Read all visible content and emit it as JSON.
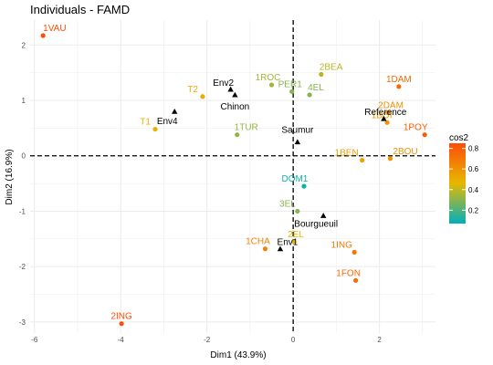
{
  "chart_data": {
    "type": "scatter",
    "title": "Individuals - FAMD",
    "xlabel": "Dim1 (43.9%)",
    "ylabel": "Dim2 (16.9%)",
    "xlim": [
      -6.1,
      3.3
    ],
    "ylim": [
      -3.2,
      2.45
    ],
    "xticks": [
      -6,
      -4,
      -2,
      0,
      2
    ],
    "yticks": [
      -3,
      -2,
      -1,
      0,
      1,
      2
    ],
    "grid": true,
    "legend": {
      "title": "cos2",
      "ticks": [
        "0.8",
        "0.6",
        "0.4",
        "0.2"
      ],
      "tick_values": [
        0.8,
        0.6,
        0.4,
        0.2
      ],
      "range": [
        0.07,
        0.85
      ],
      "colors": [
        "#00AFBB",
        "#E7B800",
        "#FC4E07"
      ],
      "placement": "right"
    },
    "individuals": [
      {
        "name": "1VAU",
        "x": -5.8,
        "y": 2.17,
        "cos2": 0.85,
        "anchor": "start",
        "dx": 0
      },
      {
        "name": "2ING",
        "x": -3.98,
        "y": -3.03,
        "cos2": 0.85,
        "anchor": "middle",
        "dx": 0
      },
      {
        "name": "T2",
        "x": -2.1,
        "y": 1.07,
        "cos2": 0.5,
        "anchor": "end",
        "dx": -5
      },
      {
        "name": "T1",
        "x": -3.2,
        "y": 0.48,
        "cos2": 0.48,
        "anchor": "end",
        "dx": -5
      },
      {
        "name": "1ROC",
        "x": -0.5,
        "y": 1.28,
        "cos2": 0.35,
        "anchor": "middle",
        "dx": -4
      },
      {
        "name": "PER1",
        "x": -0.03,
        "y": 1.16,
        "cos2": 0.3,
        "anchor": "middle",
        "dx": -2
      },
      {
        "name": "2BEA",
        "x": 0.65,
        "y": 1.47,
        "cos2": 0.38,
        "anchor": "start",
        "dx": -2
      },
      {
        "name": "4EL",
        "x": 0.38,
        "y": 1.1,
        "cos2": 0.3,
        "anchor": "start",
        "dx": -2
      },
      {
        "name": "1TUR",
        "x": -1.3,
        "y": 0.38,
        "cos2": 0.32,
        "anchor": "middle",
        "dx": 10
      },
      {
        "name": "1DAM",
        "x": 2.45,
        "y": 1.25,
        "cos2": 0.75,
        "anchor": "middle",
        "dx": 0
      },
      {
        "name": "2DAM",
        "x": 2.2,
        "y": 0.78,
        "cos2": 0.62,
        "anchor": "middle",
        "dx": 3
      },
      {
        "name": "1BOI",
        "x": 2.18,
        "y": 0.6,
        "cos2": 0.58,
        "anchor": "middle",
        "dx": -6
      },
      {
        "name": "1POY",
        "x": 3.05,
        "y": 0.38,
        "cos2": 0.8,
        "anchor": "middle",
        "dx": -10
      },
      {
        "name": "2BOU",
        "x": 2.25,
        "y": -0.05,
        "cos2": 0.6,
        "anchor": "start",
        "dx": 3
      },
      {
        "name": "1BEN",
        "x": 1.6,
        "y": -0.08,
        "cos2": 0.55,
        "anchor": "end",
        "dx": -4
      },
      {
        "name": "DOM1",
        "x": 0.25,
        "y": -0.55,
        "cos2": 0.1,
        "anchor": "middle",
        "dx": -10
      },
      {
        "name": "3EL",
        "x": 0.1,
        "y": -1.0,
        "cos2": 0.3,
        "anchor": "end",
        "dx": -2
      },
      {
        "name": "2EL",
        "x": 0.02,
        "y": -1.55,
        "cos2": 0.45,
        "anchor": "middle",
        "dx": 2
      },
      {
        "name": "1CHA",
        "x": -0.65,
        "y": -1.68,
        "cos2": 0.66,
        "anchor": "middle",
        "dx": -8
      },
      {
        "name": "1ING",
        "x": 1.42,
        "y": -1.74,
        "cos2": 0.7,
        "anchor": "middle",
        "dx": -14
      },
      {
        "name": "1FON",
        "x": 1.45,
        "y": -2.25,
        "cos2": 0.75,
        "anchor": "middle",
        "dx": -8
      }
    ],
    "supplementary": [
      {
        "name": "Env2",
        "x": -1.45,
        "y": 1.2,
        "anchor": "middle",
        "dx": -8,
        "dy": -4
      },
      {
        "name": "Chinon",
        "x": -1.35,
        "y": 1.1,
        "anchor": "middle",
        "dx": 0,
        "dy": 16
      },
      {
        "name": "Env4",
        "x": -2.75,
        "y": 0.8,
        "anchor": "middle",
        "dx": -8,
        "dy": 14
      },
      {
        "name": "Saumur",
        "x": 0.1,
        "y": 0.25,
        "anchor": "middle",
        "dx": 0,
        "dy": -10
      },
      {
        "name": "Reference",
        "x": 2.1,
        "y": 0.67,
        "anchor": "middle",
        "dx": 2,
        "dy": -4
      },
      {
        "name": "Bourgueuil",
        "x": 0.7,
        "y": -1.08,
        "anchor": "middle",
        "dx": -8,
        "dy": 12
      },
      {
        "name": "Env1",
        "x": -0.3,
        "y": -1.68,
        "anchor": "middle",
        "dx": 8,
        "dy": -4
      }
    ]
  }
}
